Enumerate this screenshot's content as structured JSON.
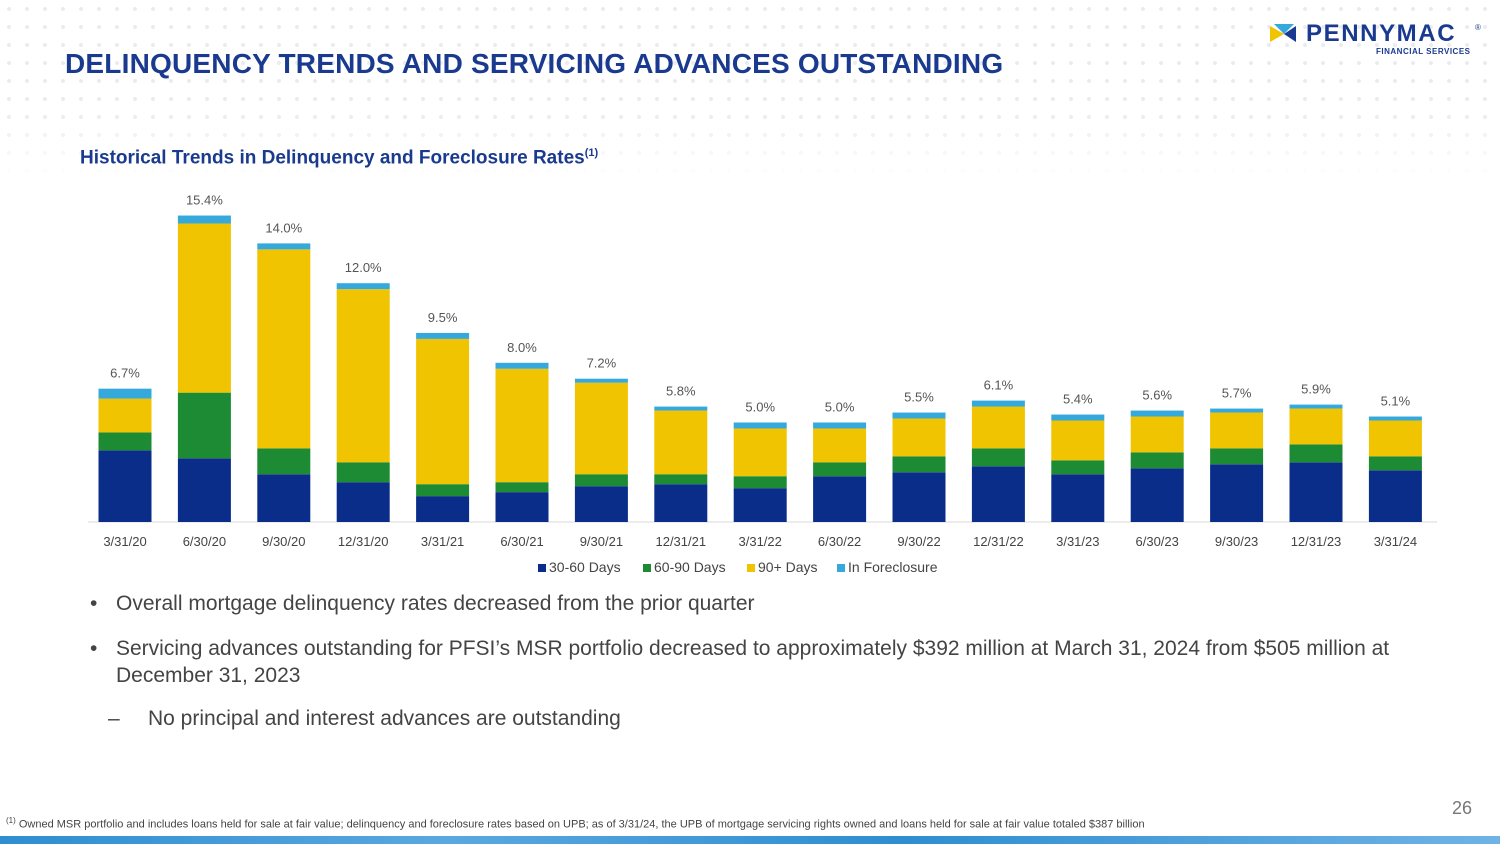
{
  "header": {
    "title": "DELINQUENCY TRENDS AND SERVICING ADVANCES OUTSTANDING",
    "logo_name": "PENNYMAC",
    "logo_tm": "®",
    "logo_sub": "FINANCIAL SERVICES"
  },
  "chart_heading": {
    "text": "Historical Trends in Delinquency and Foreclosure Rates",
    "note_ref": "(1)"
  },
  "chart_data": {
    "type": "bar",
    "stacked": true,
    "categories": [
      "3/31/20",
      "6/30/20",
      "9/30/20",
      "12/31/20",
      "3/31/21",
      "6/30/21",
      "9/30/21",
      "12/31/21",
      "3/31/22",
      "6/30/22",
      "9/30/22",
      "12/31/22",
      "3/31/23",
      "6/30/23",
      "9/30/23",
      "12/31/23",
      "3/31/24"
    ],
    "totals_labels": [
      "6.7%",
      "15.4%",
      "14.0%",
      "12.0%",
      "9.5%",
      "8.0%",
      "7.2%",
      "5.8%",
      "5.0%",
      "5.0%",
      "5.5%",
      "6.1%",
      "5.4%",
      "5.6%",
      "5.7%",
      "5.9%",
      "5.1%"
    ],
    "series": [
      {
        "name": "30-60 Days",
        "color": "#0a2d8a",
        "values": [
          3.6,
          3.2,
          2.4,
          2.0,
          1.3,
          1.5,
          1.8,
          1.9,
          1.7,
          2.3,
          2.5,
          2.8,
          2.4,
          2.7,
          2.9,
          3.0,
          2.6
        ]
      },
      {
        "name": "60-90 Days",
        "color": "#1d8a34",
        "values": [
          0.9,
          3.3,
          1.3,
          1.0,
          0.6,
          0.5,
          0.6,
          0.5,
          0.6,
          0.7,
          0.8,
          0.9,
          0.7,
          0.8,
          0.8,
          0.9,
          0.7
        ]
      },
      {
        "name": "90+ Days",
        "color": "#f0c400",
        "values": [
          1.7,
          8.5,
          10.0,
          8.7,
          7.3,
          5.7,
          4.6,
          3.2,
          2.4,
          1.7,
          1.9,
          2.1,
          2.0,
          1.8,
          1.8,
          1.8,
          1.8
        ]
      },
      {
        "name": "In Foreclosure",
        "color": "#36a9dc",
        "values": [
          0.5,
          0.4,
          0.3,
          0.3,
          0.3,
          0.3,
          0.2,
          0.2,
          0.3,
          0.3,
          0.3,
          0.3,
          0.3,
          0.3,
          0.2,
          0.2,
          0.2
        ]
      }
    ],
    "ylim": [
      0,
      16
    ],
    "grid": false,
    "legend_position": "bottom"
  },
  "bullets": [
    "Overall mortgage delinquency rates decreased from the prior quarter",
    "Servicing advances outstanding for PFSI’s MSR portfolio decreased to approximately $392 million at March 31, 2024 from $505 million at December 31, 2023"
  ],
  "sub_bullets": [
    "No principal and interest advances are outstanding"
  ],
  "bullet_marks": {
    "bullet": "•",
    "sub": "–"
  },
  "footnote": {
    "ref": "(1)",
    "text": " Owned MSR portfolio and includes loans held for sale at fair value; delinquency and foreclosure rates based on UPB; as of 3/31/24, the UPB of mortgage servicing rights owned and loans held for sale at fair value totaled $387 billion"
  },
  "page_number": "26"
}
